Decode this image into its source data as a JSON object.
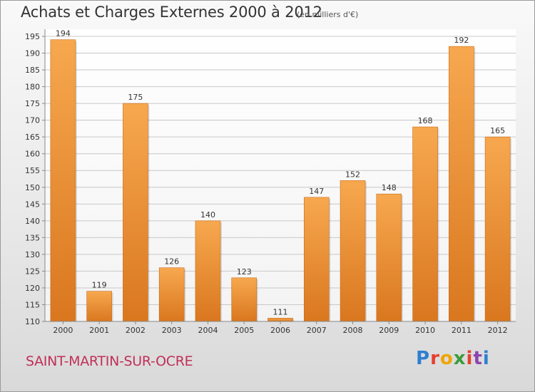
{
  "header": {
    "title": "Achats et Charges Externes 2000 à 2012",
    "subtitle": "(en milliers d'€)"
  },
  "footer": {
    "commune": "SAINT-MARTIN-SUR-OCRE",
    "brand": "Proxiti",
    "brand_colors": [
      "#2f7fd0",
      "#e6402f",
      "#f0a500",
      "#3c9c3c",
      "#e6402f",
      "#8c44b0",
      "#2f7fd0"
    ]
  },
  "colors": {
    "bar_light": "#f7a84f",
    "bar_dark": "#d9771f",
    "grid": "#c8c8c8",
    "plot_bg": "#ffffff"
  },
  "chart_data": {
    "type": "bar",
    "title": "Achats et Charges Externes 2000 à 2012",
    "subtitle": "(en milliers d'€)",
    "categories": [
      "2000",
      "2001",
      "2002",
      "2003",
      "2004",
      "2005",
      "2006",
      "2007",
      "2008",
      "2009",
      "2010",
      "2011",
      "2012"
    ],
    "values": [
      194,
      119,
      175,
      126,
      140,
      123,
      111,
      147,
      152,
      148,
      168,
      192,
      165
    ],
    "ylim": [
      110,
      195
    ],
    "yticks": [
      110,
      115,
      120,
      125,
      130,
      135,
      140,
      145,
      150,
      155,
      160,
      165,
      170,
      175,
      180,
      185,
      190,
      195
    ],
    "grid": true,
    "legend": "none"
  }
}
